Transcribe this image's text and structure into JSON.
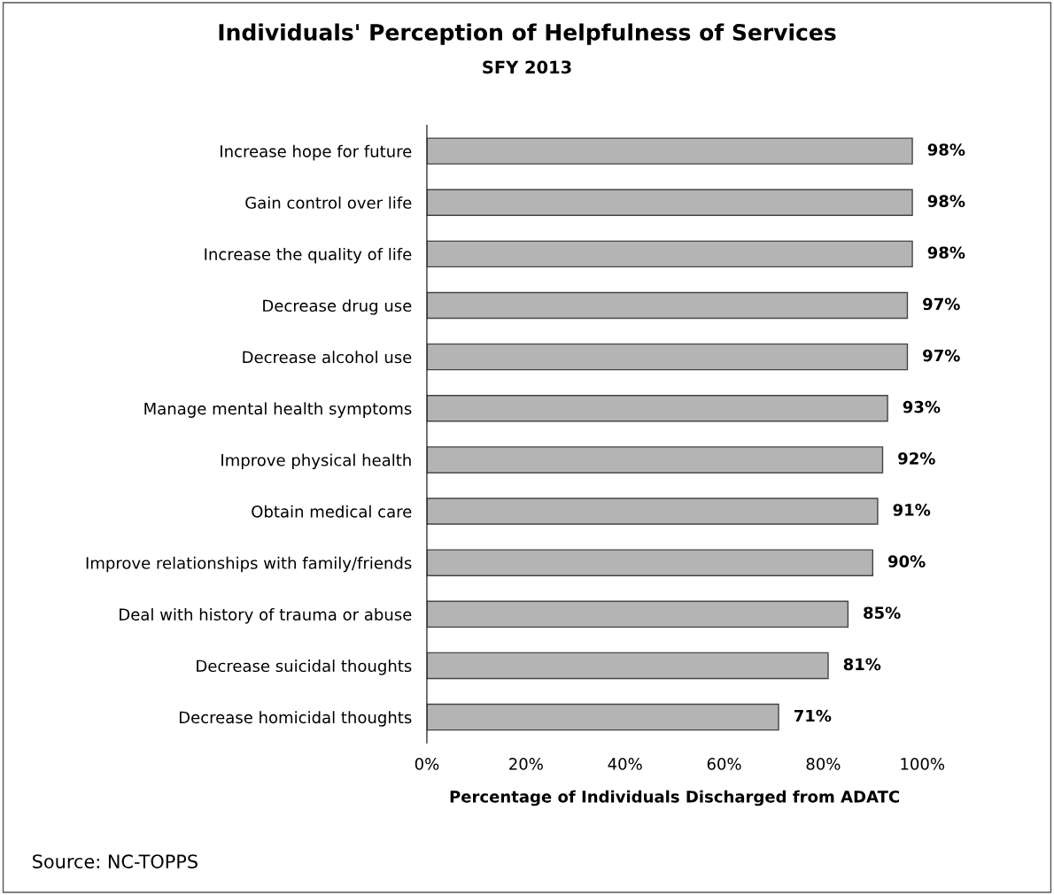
{
  "chart_data": {
    "type": "bar",
    "orientation": "horizontal",
    "title": "Individuals' Perception of Helpfulness of Services",
    "subtitle": "SFY 2013",
    "xlabel": "Percentage of Individuals Discharged from ADATC",
    "categories": [
      "Increase hope for future",
      "Gain control over life",
      "Increase the quality of life",
      "Decrease drug use",
      "Decrease alcohol use",
      "Manage mental health symptoms",
      "Improve physical health",
      "Obtain medical care",
      "Improve relationships with family/friends",
      "Deal with history of trauma or abuse",
      "Decrease suicidal thoughts",
      "Decrease homicidal thoughts"
    ],
    "values": [
      98,
      98,
      98,
      97,
      97,
      93,
      92,
      91,
      90,
      85,
      81,
      71
    ],
    "value_labels": [
      "98%",
      "98%",
      "98%",
      "97%",
      "97%",
      "93%",
      "92%",
      "91%",
      "90%",
      "85%",
      "81%",
      "71%"
    ],
    "color": "#b4b4b4",
    "xlim": [
      0,
      100
    ],
    "xticks": [
      {
        "value": 0,
        "label": "0%"
      },
      {
        "value": 20,
        "label": "20%"
      },
      {
        "value": 40,
        "label": "40%"
      },
      {
        "value": 60,
        "label": "60%"
      },
      {
        "value": 80,
        "label": "80%"
      },
      {
        "value": 100,
        "label": "100%"
      }
    ],
    "grid": false,
    "annotations": [
      "Source: NC-TOPPS"
    ]
  }
}
